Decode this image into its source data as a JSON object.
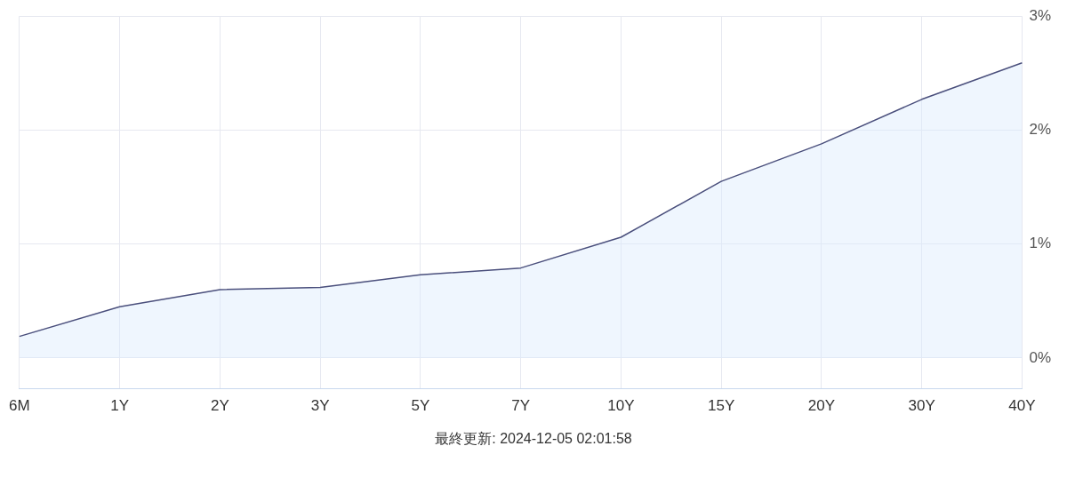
{
  "chart_data": {
    "type": "area",
    "categories": [
      "6M",
      "1Y",
      "2Y",
      "3Y",
      "5Y",
      "7Y",
      "10Y",
      "15Y",
      "20Y",
      "30Y",
      "40Y"
    ],
    "series": [
      {
        "color": "#4a4f7c",
        "values": [
          0.19,
          0.45,
          0.6,
          0.62,
          0.73,
          0.79,
          1.06,
          1.55,
          1.88,
          2.27,
          2.59
        ]
      }
    ],
    "ylim": [
      -0.27,
      3
    ],
    "yticks": [
      {
        "value": 0,
        "label": "0%"
      },
      {
        "value": 1,
        "label": "1%"
      },
      {
        "value": 2,
        "label": "2%"
      },
      {
        "value": 3,
        "label": "3%"
      }
    ],
    "grid": true,
    "legend": false,
    "marker": "none",
    "line_style": "solid",
    "annotations": [
      "最終更新: 2024-12-05 02:01:58"
    ]
  }
}
